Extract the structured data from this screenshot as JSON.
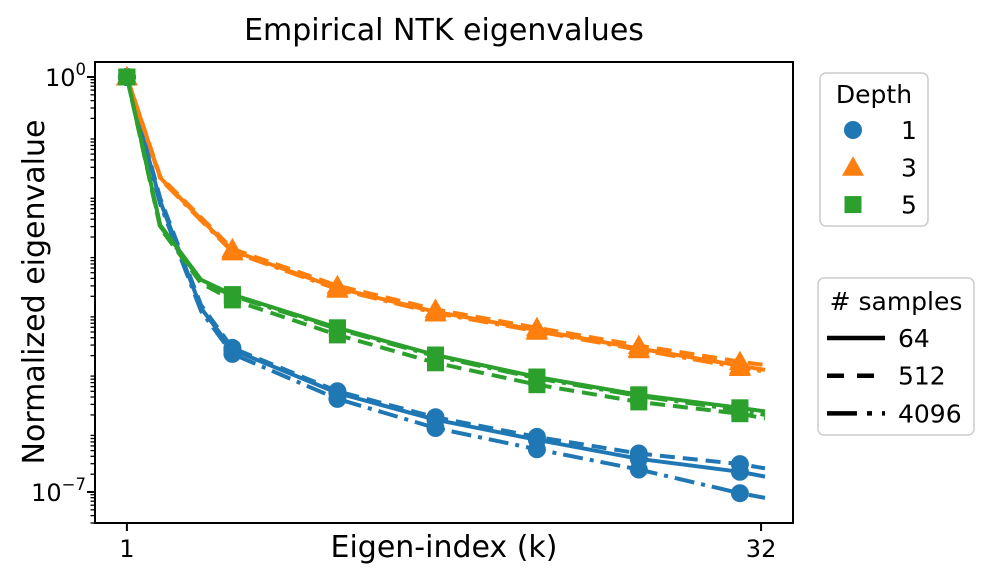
{
  "figure": {
    "title": "Empirical NTK eigenvalues",
    "xlabel": "Eigen-index (k)",
    "ylabel": "Normalized eigenvalue"
  },
  "colors": {
    "blue": "#1f77b4",
    "orange": "#ff7f0e",
    "green": "#2ca02c",
    "axis": "#000000",
    "legend_border": "#cccccc",
    "background": "#ffffff"
  },
  "chart_data": {
    "type": "line",
    "title": "Empirical NTK eigenvalues",
    "xlabel": "Eigen-index (k)",
    "ylabel": "Normalized eigenvalue",
    "xscale": "log",
    "yscale": "log",
    "grid": false,
    "xlim": [
      0.84,
      38.1
    ],
    "ylim": [
      3e-08,
      1.79
    ],
    "xticks": [
      {
        "value": 1,
        "label": "1"
      },
      {
        "value": 32,
        "label": "32"
      }
    ],
    "yticks": [
      {
        "exp": 0,
        "base": "10",
        "sup": "0"
      },
      {
        "exp": -7,
        "base": "10",
        "sup": "−7"
      }
    ],
    "x": [
      1,
      1.2,
      1.5,
      1.78,
      3.16,
      5.4,
      9.4,
      16.4,
      28.5,
      32.7
    ],
    "marker_every": [
      0,
      3,
      4,
      5,
      6,
      7,
      8
    ],
    "series": [
      {
        "name": "depth 1, 64 samples",
        "depth": 1,
        "samples": 64,
        "color": "#1f77b4",
        "marker": "circle",
        "linestyle": "solid",
        "log10y": [
          0,
          -2.1,
          -3.9,
          -4.6,
          -5.33,
          -5.78,
          -6.12,
          -6.44,
          -6.66,
          -6.74
        ]
      },
      {
        "name": "depth 1, 512 samples",
        "depth": 1,
        "samples": 512,
        "color": "#1f77b4",
        "marker": "circle",
        "linestyle": "dashed",
        "log10y": [
          0,
          -2.05,
          -3.85,
          -4.57,
          -5.3,
          -5.74,
          -6.07,
          -6.35,
          -6.53,
          -6.6
        ]
      },
      {
        "name": "depth 1, 4096 samples",
        "depth": 1,
        "samples": 4096,
        "color": "#1f77b4",
        "marker": "circle",
        "linestyle": "dashdot",
        "log10y": [
          0,
          -2.15,
          -3.95,
          -4.67,
          -5.43,
          -5.92,
          -6.28,
          -6.62,
          -7.02,
          -7.1
        ]
      },
      {
        "name": "depth 3, 64 samples",
        "depth": 3,
        "samples": 64,
        "color": "#ff7f0e",
        "marker": "triangle",
        "linestyle": "solid",
        "log10y": [
          0,
          -1.7,
          -2.4,
          -2.93,
          -3.56,
          -3.96,
          -4.27,
          -4.58,
          -4.87,
          -4.94
        ]
      },
      {
        "name": "depth 3, 512 samples",
        "depth": 3,
        "samples": 512,
        "color": "#ff7f0e",
        "marker": "triangle",
        "linestyle": "dashed",
        "log10y": [
          0,
          -1.68,
          -2.37,
          -2.9,
          -3.52,
          -3.92,
          -4.23,
          -4.53,
          -4.8,
          -4.86
        ]
      },
      {
        "name": "depth 3, 4096 samples",
        "depth": 3,
        "samples": 4096,
        "color": "#ff7f0e",
        "marker": "triangle",
        "linestyle": "dashdot",
        "log10y": [
          0,
          -1.72,
          -2.42,
          -2.95,
          -3.58,
          -3.98,
          -4.29,
          -4.6,
          -4.9,
          -4.97
        ]
      },
      {
        "name": "depth 5, 64 samples",
        "depth": 5,
        "samples": 64,
        "color": "#2ca02c",
        "marker": "square",
        "linestyle": "solid",
        "log10y": [
          0,
          -2.5,
          -3.42,
          -3.67,
          -4.23,
          -4.69,
          -5.06,
          -5.36,
          -5.58,
          -5.64
        ]
      },
      {
        "name": "depth 5, 512 samples",
        "depth": 5,
        "samples": 512,
        "color": "#2ca02c",
        "marker": "square",
        "linestyle": "dashed",
        "log10y": [
          0,
          -2.55,
          -3.48,
          -3.76,
          -4.35,
          -4.82,
          -5.19,
          -5.48,
          -5.68,
          -5.76
        ]
      },
      {
        "name": "depth 5, 4096 samples",
        "depth": 5,
        "samples": 4096,
        "color": "#2ca02c",
        "marker": "square",
        "linestyle": "dashdot",
        "log10y": [
          0,
          -2.52,
          -3.44,
          -3.69,
          -4.25,
          -4.71,
          -5.08,
          -5.38,
          -5.62,
          -5.7
        ]
      }
    ],
    "legends": [
      {
        "title": "Depth",
        "position": "outside-top-right",
        "entries": [
          {
            "label": "1",
            "marker": "circle",
            "color": "#1f77b4"
          },
          {
            "label": "3",
            "marker": "triangle",
            "color": "#ff7f0e"
          },
          {
            "label": "5",
            "marker": "square",
            "color": "#2ca02c"
          }
        ]
      },
      {
        "title": "# samples",
        "position": "outside-right",
        "entries": [
          {
            "label": "64",
            "linestyle": "solid"
          },
          {
            "label": "512",
            "linestyle": "dashed"
          },
          {
            "label": "4096",
            "linestyle": "dashdot"
          }
        ]
      }
    ]
  }
}
